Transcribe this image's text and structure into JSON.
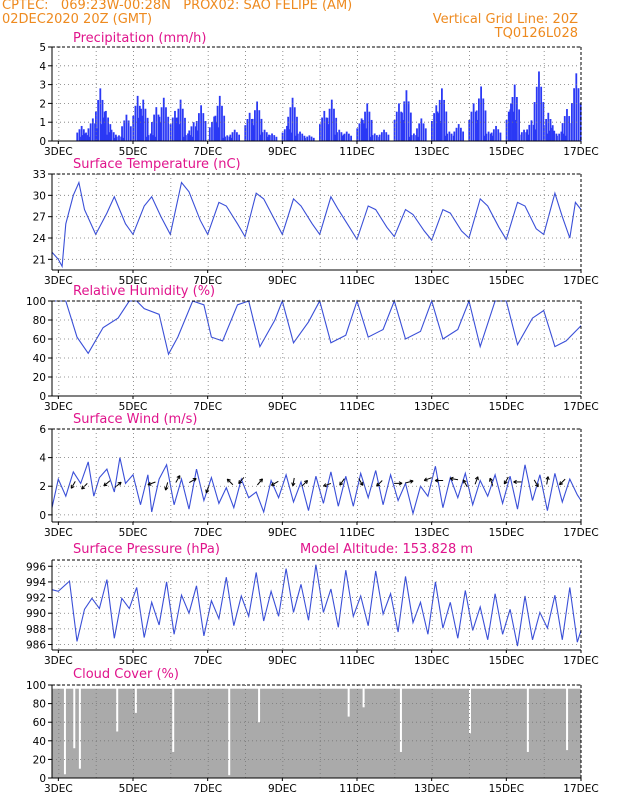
{
  "header": {
    "line1_left": "CPTEC:   069:23W-00:28N   PROX02: SAO FELIPE (AM)",
    "line2_left": "02DEC2020 20Z (GMT)",
    "line2_right": "Vertical Grid Line: 20Z",
    "line3_right": "TQ0126L028"
  },
  "colors": {
    "header": "#ee8a1f",
    "title": "#e0148c",
    "bar": "#2b39f5",
    "line": "#3a4fd8",
    "cloud": "#aaaaaa",
    "arrow": "#000000"
  },
  "x_axis": {
    "day_start": 2.83,
    "day_end": 17.0,
    "tick_labels": [
      "3DEC",
      "5DEC",
      "7DEC",
      "9DEC",
      "11DEC",
      "13DEC",
      "15DEC",
      "17DEC"
    ],
    "tick_days": [
      3,
      5,
      7,
      9,
      11,
      13,
      15,
      17
    ]
  },
  "chart_data": [
    {
      "type": "bar",
      "title": "Precipitation (mm/h)",
      "ylim": [
        0,
        5
      ],
      "yticks": [
        "0",
        "1",
        "2",
        "3",
        "4",
        "5"
      ],
      "x": [
        3.6,
        3.7,
        3.9,
        4.1,
        4.25,
        4.4,
        4.6,
        4.8,
        5.1,
        5.25,
        5.45,
        5.6,
        5.8,
        6.1,
        6.25,
        6.45,
        6.6,
        6.8,
        7.15,
        7.3,
        7.5,
        7.7,
        8.1,
        8.3,
        8.5,
        8.7,
        9.1,
        9.25,
        9.45,
        9.7,
        10.1,
        10.3,
        10.5,
        10.7,
        11.1,
        11.25,
        11.45,
        11.7,
        12.1,
        12.3,
        12.5,
        12.7,
        13.1,
        13.25,
        13.45,
        13.7,
        14.1,
        14.3,
        14.5,
        14.7,
        15.1,
        15.2,
        15.45,
        15.65,
        15.85,
        16.1,
        16.2,
        16.45,
        16.6,
        16.85
      ],
      "values": [
        0.8,
        0.4,
        1.2,
        2.8,
        1.6,
        0.6,
        0.3,
        1.4,
        2.4,
        2.2,
        0.4,
        1.8,
        2.3,
        1.6,
        2.2,
        0.4,
        1.0,
        1.9,
        1.3,
        2.4,
        0.3,
        0.6,
        1.5,
        2.1,
        0.6,
        0.4,
        0.8,
        2.3,
        0.5,
        0.3,
        1.6,
        2.2,
        0.6,
        0.5,
        1.2,
        2.0,
        0.4,
        0.6,
        2.0,
        2.7,
        0.4,
        1.2,
        1.9,
        2.8,
        0.5,
        0.9,
        2.0,
        2.9,
        0.5,
        0.8,
        2.0,
        3.0,
        0.6,
        1.1,
        3.7,
        1.5,
        0.7,
        0.5,
        1.7,
        3.6
      ]
    },
    {
      "type": "line",
      "title": "Surface Temperature (nC)",
      "ylim": [
        19.5,
        33
      ],
      "yticks": [
        "21",
        "24",
        "27",
        "30",
        "33"
      ],
      "x": [
        2.83,
        3.0,
        3.1,
        3.2,
        3.4,
        3.55,
        3.7,
        4.0,
        4.3,
        4.5,
        4.8,
        5.0,
        5.3,
        5.5,
        5.75,
        6.0,
        6.3,
        6.5,
        6.8,
        7.0,
        7.3,
        7.5,
        7.8,
        8.0,
        8.3,
        8.5,
        8.8,
        9.0,
        9.3,
        9.5,
        9.8,
        10.0,
        10.3,
        10.5,
        10.8,
        11.0,
        11.3,
        11.5,
        11.8,
        12.0,
        12.3,
        12.5,
        12.8,
        13.0,
        13.3,
        13.5,
        13.8,
        14.0,
        14.3,
        14.5,
        14.8,
        15.0,
        15.3,
        15.5,
        15.8,
        16.0,
        16.3,
        16.5,
        16.7,
        16.85,
        17.0
      ],
      "values": [
        22,
        21,
        20,
        26,
        30,
        31.8,
        28,
        24.5,
        27.5,
        29.8,
        26,
        24.5,
        28.5,
        29.8,
        27,
        24.5,
        31.8,
        30.5,
        26.5,
        24.5,
        29,
        28.5,
        26,
        24.2,
        30.3,
        29.5,
        26.5,
        24.5,
        29.5,
        28.5,
        26,
        24.5,
        29.8,
        28,
        25.5,
        23.8,
        28.5,
        28,
        25.5,
        24.2,
        28,
        27.3,
        25,
        23.7,
        28,
        27.5,
        25,
        24,
        29.5,
        28.5,
        25.5,
        23.8,
        29,
        28.5,
        25.3,
        24.5,
        30.3,
        27,
        24,
        29,
        28
      ]
    },
    {
      "type": "line",
      "title": "Relative Humidity (%)",
      "ylim": [
        0,
        100
      ],
      "yticks": [
        "0",
        "20",
        "40",
        "60",
        "80",
        "100"
      ],
      "x": [
        2.83,
        3.2,
        3.5,
        3.8,
        4.2,
        4.6,
        4.9,
        5.1,
        5.3,
        5.7,
        5.95,
        6.2,
        6.6,
        6.9,
        7.1,
        7.4,
        7.8,
        8.1,
        8.4,
        8.8,
        9.0,
        9.3,
        9.7,
        10.0,
        10.3,
        10.7,
        11.0,
        11.3,
        11.7,
        12.0,
        12.3,
        12.7,
        13.0,
        13.3,
        13.7,
        14.0,
        14.3,
        14.7,
        15.0,
        15.3,
        15.7,
        16.0,
        16.3,
        16.6,
        17.0
      ],
      "values": [
        100,
        100,
        62,
        45,
        72,
        82,
        100,
        100,
        92,
        86,
        44,
        62,
        100,
        96,
        62,
        58,
        96,
        100,
        52,
        80,
        100,
        56,
        78,
        100,
        56,
        64,
        100,
        62,
        70,
        100,
        60,
        68,
        100,
        60,
        70,
        100,
        52,
        100,
        100,
        54,
        82,
        90,
        52,
        58,
        74
      ]
    },
    {
      "type": "line",
      "title": "Surface Wind (m/s)",
      "ylim": [
        -0.5,
        6
      ],
      "yticks": [
        "0",
        "2",
        "4",
        "6"
      ],
      "x": [
        2.83,
        3.0,
        3.2,
        3.4,
        3.6,
        3.8,
        3.95,
        4.1,
        4.3,
        4.5,
        4.65,
        4.8,
        5.0,
        5.2,
        5.4,
        5.5,
        5.7,
        5.9,
        6.1,
        6.3,
        6.5,
        6.7,
        6.9,
        7.1,
        7.3,
        7.5,
        7.7,
        7.9,
        8.1,
        8.3,
        8.5,
        8.7,
        8.9,
        9.1,
        9.3,
        9.5,
        9.7,
        9.9,
        10.1,
        10.3,
        10.5,
        10.7,
        10.9,
        11.1,
        11.3,
        11.5,
        11.7,
        11.9,
        12.1,
        12.3,
        12.5,
        12.7,
        12.9,
        13.1,
        13.3,
        13.5,
        13.7,
        13.9,
        14.1,
        14.3,
        14.5,
        14.7,
        14.9,
        15.1,
        15.3,
        15.5,
        15.7,
        15.9,
        16.1,
        16.3,
        16.5,
        16.7,
        16.9,
        17.0
      ],
      "values": [
        0.5,
        2.5,
        1.3,
        3.0,
        2.2,
        3.7,
        1.3,
        2.6,
        3.2,
        1.6,
        4.0,
        2.2,
        2.8,
        0.7,
        2.8,
        0.2,
        2.5,
        3.5,
        0.7,
        2.5,
        0.4,
        3.2,
        1.0,
        2.6,
        0.8,
        1.9,
        0.5,
        2.5,
        1.2,
        1.6,
        0.2,
        2.4,
        1.2,
        2.8,
        0.9,
        2.3,
        0.3,
        2.7,
        0.8,
        3.0,
        0.6,
        2.7,
        0.6,
        2.9,
        1.2,
        3.1,
        0.7,
        2.8,
        1.0,
        2.2,
        0.1,
        2.0,
        1.3,
        3.4,
        0.5,
        2.6,
        1.2,
        2.9,
        0.7,
        2.4,
        1.3,
        2.8,
        0.8,
        2.7,
        0.4,
        3.5,
        1.0,
        2.8,
        0.3,
        2.9,
        0.9,
        2.5,
        1.4,
        1.0
      ],
      "arrows_x": [
        3.4,
        3.7,
        4.3,
        4.6,
        5.5,
        5.9,
        6.2,
        6.6,
        7.0,
        7.6,
        7.9,
        8.4,
        8.8,
        9.3,
        9.6,
        10.2,
        10.6,
        11.1,
        11.6,
        12.1,
        12.4,
        12.9,
        13.2,
        13.6,
        13.9,
        14.2,
        14.6,
        15.0,
        15.3,
        15.8,
        16.1,
        16.5
      ],
      "arrows_y": [
        2.1,
        2.0,
        2.2,
        2.1,
        2.2,
        2.0,
        2.5,
        2.4,
        1.8,
        2.3,
        2.4,
        2.3,
        2.2,
        2.3,
        2.2,
        2.1,
        2.3,
        2.3,
        2.2,
        2.2,
        2.3,
        2.5,
        2.4,
        2.5,
        2.2,
        2.4,
        2.3,
        2.4,
        2.3,
        2.2,
        2.4,
        2.3
      ],
      "arrows_dir_deg": [
        240,
        225,
        220,
        40,
        200,
        255,
        60,
        30,
        250,
        135,
        230,
        50,
        210,
        260,
        45,
        200,
        235,
        300,
        225,
        0,
        15,
        200,
        180,
        170,
        120,
        70,
        110,
        240,
        180,
        300,
        80,
        225
      ]
    },
    {
      "type": "line",
      "title": "Surface Pressure (hPa)",
      "annotation": "Model Altitude: 153.828 m",
      "ylim": [
        985.3,
        996.8
      ],
      "yticks": [
        "986",
        "988",
        "990",
        "992",
        "994",
        "996"
      ],
      "x": [
        2.83,
        3.0,
        3.3,
        3.5,
        3.7,
        3.9,
        4.1,
        4.3,
        4.5,
        4.7,
        4.9,
        5.1,
        5.3,
        5.5,
        5.7,
        5.9,
        6.1,
        6.3,
        6.5,
        6.7,
        6.9,
        7.1,
        7.3,
        7.5,
        7.7,
        7.9,
        8.1,
        8.3,
        8.5,
        8.7,
        8.9,
        9.1,
        9.3,
        9.5,
        9.7,
        9.9,
        10.1,
        10.3,
        10.5,
        10.7,
        10.9,
        11.1,
        11.3,
        11.5,
        11.7,
        11.9,
        12.1,
        12.3,
        12.5,
        12.7,
        12.9,
        13.1,
        13.3,
        13.5,
        13.7,
        13.9,
        14.1,
        14.3,
        14.5,
        14.7,
        14.9,
        15.1,
        15.3,
        15.5,
        15.7,
        15.9,
        16.1,
        16.3,
        16.5,
        16.7,
        16.9,
        17.0
      ],
      "values": [
        993,
        992.8,
        994.1,
        986.4,
        990.5,
        991.9,
        990.6,
        994.3,
        986.8,
        991.9,
        990.6,
        993.3,
        986.9,
        991.4,
        988.5,
        994.0,
        987.3,
        992.3,
        990.0,
        993.5,
        987.1,
        991.6,
        989.3,
        994.6,
        988.4,
        992.2,
        989.6,
        995.2,
        989.0,
        992.8,
        989.6,
        995.7,
        990.1,
        993.7,
        989.1,
        996.2,
        990.1,
        993.1,
        988.2,
        995.5,
        989.6,
        992.2,
        988.4,
        995.4,
        989.9,
        992.5,
        987.6,
        994.7,
        988.8,
        991.4,
        987.3,
        994.0,
        988.1,
        991.4,
        986.8,
        992.9,
        987.8,
        990.8,
        986.6,
        992.5,
        987.3,
        990.5,
        985.8,
        992.2,
        986.6,
        990.1,
        988.1,
        992.3,
        986.6,
        993.3,
        986.3,
        987.8
      ]
    },
    {
      "type": "bar",
      "title": "Cloud Cover (%)",
      "ylim": [
        0,
        100
      ],
      "yticks": [
        "0",
        "20",
        "40",
        "60",
        "80",
        "100"
      ],
      "fill": 96,
      "dip_x": [
        3.15,
        3.4,
        3.55,
        4.55,
        5.05,
        6.05,
        7.55,
        8.35,
        10.75,
        11.15,
        12.15,
        14.0,
        15.55,
        16.6
      ],
      "dip_values": [
        4,
        32,
        10,
        50,
        70,
        28,
        3,
        60,
        66,
        76,
        28,
        48,
        28,
        30
      ]
    }
  ]
}
